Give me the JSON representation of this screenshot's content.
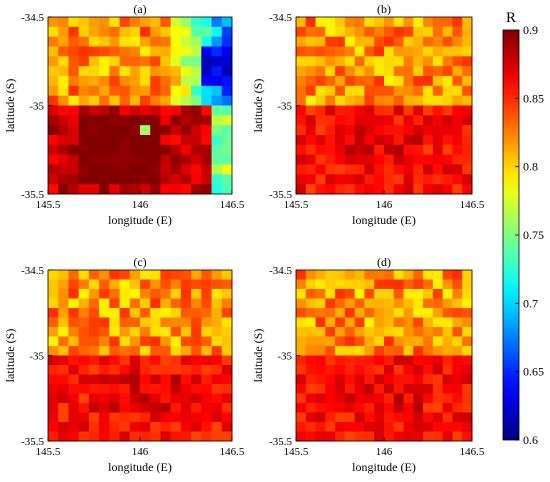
{
  "chart_data": [
    {
      "type": "heatmap",
      "title": "(a)",
      "xlabel": "longitude (E)",
      "ylabel": "latitude (S)",
      "xlim": [
        145.5,
        146.5
      ],
      "ylim": [
        -35.5,
        -34.5
      ],
      "x_ticks": [
        "145.5",
        "146",
        "146.5"
      ],
      "y_ticks": [
        "-34.5",
        "-35",
        "-35.5"
      ],
      "grid_rows": 18,
      "grid_cols": 18,
      "cell_values_approx": {
        "north_half": 0.82,
        "south_half": 0.88,
        "northeast_corner": 0.68,
        "east_edge_south": 0.76
      }
    },
    {
      "type": "heatmap",
      "title": "(b)",
      "xlabel": "longitude (E)",
      "ylabel": "latitude (S)",
      "xlim": [
        145.5,
        146.5
      ],
      "ylim": [
        -35.5,
        -34.5
      ],
      "x_ticks": [
        "145.5",
        "146",
        "146.5"
      ],
      "y_ticks": [
        "-34.5",
        "-35",
        "-35.5"
      ],
      "grid_rows": 18,
      "grid_cols": 18,
      "cell_values_approx": {
        "north_half": 0.82,
        "south_half": 0.86
      }
    },
    {
      "type": "heatmap",
      "title": "(c)",
      "xlabel": "longitude (E)",
      "ylabel": "latitude (S)",
      "xlim": [
        145.5,
        146.5
      ],
      "ylim": [
        -35.5,
        -34.5
      ],
      "x_ticks": [
        "145.5",
        "146",
        "146.5"
      ],
      "y_ticks": [
        "-34.5",
        "-35",
        "-35.5"
      ],
      "grid_rows": 18,
      "grid_cols": 18,
      "cell_values_approx": {
        "north_half": 0.82,
        "south_half": 0.86
      }
    },
    {
      "type": "heatmap",
      "title": "(d)",
      "xlabel": "longitude (E)",
      "ylabel": "latitude (S)",
      "xlim": [
        145.5,
        146.5
      ],
      "ylim": [
        -35.5,
        -34.5
      ],
      "x_ticks": [
        "145.5",
        "146",
        "146.5"
      ],
      "y_ticks": [
        "-34.5",
        "-35",
        "-35.5"
      ],
      "grid_rows": 18,
      "grid_cols": 18,
      "cell_values_approx": {
        "north_half": 0.82,
        "south_half": 0.86
      }
    }
  ],
  "colorbar": {
    "label": "R",
    "range": [
      0.6,
      0.9
    ],
    "ticks": [
      "0.9",
      "0.85",
      "0.8",
      "0.75",
      "0.7",
      "0.65",
      "0.6"
    ],
    "colormap": "jet"
  }
}
